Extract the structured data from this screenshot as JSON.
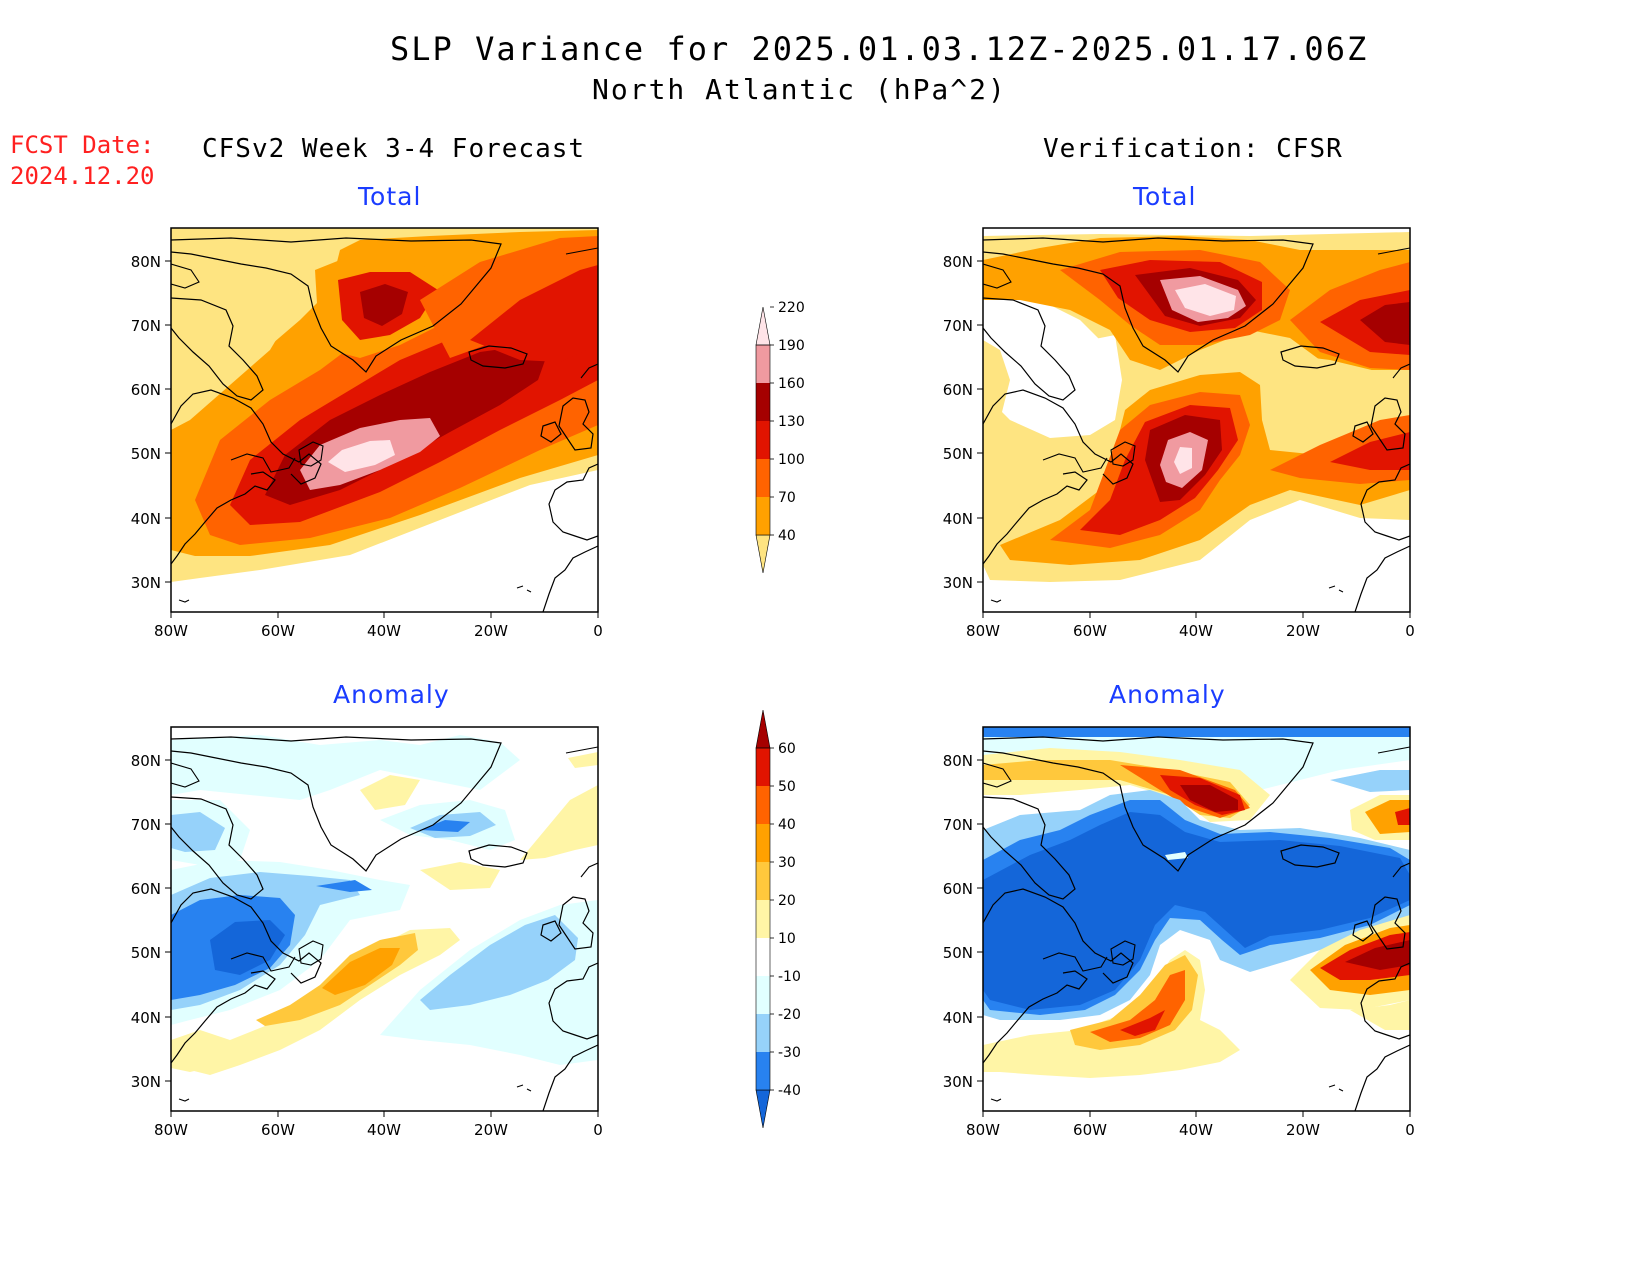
{
  "header": {
    "title": "SLP Variance for 2025.01.03.12Z-2025.01.17.06Z",
    "subtitle": "North Atlantic (hPa^2)"
  },
  "fcst_date": {
    "label": "FCST Date:",
    "value": "2024.12.20"
  },
  "columns": {
    "left": "CFSv2 Week 3-4 Forecast",
    "right": "Verification: CFSR"
  },
  "panels": {
    "total_label": "Total",
    "anomaly_label": "Anomaly"
  },
  "axes": {
    "lat_labels": [
      "80N",
      "70N",
      "60N",
      "50N",
      "40N",
      "30N"
    ],
    "lon_labels": [
      "80W",
      "60W",
      "40W",
      "20W",
      "0"
    ]
  },
  "colorbar_total": {
    "levels": [
      "40",
      "70",
      "100",
      "130",
      "160",
      "190",
      "220"
    ],
    "colors": [
      "#fee481",
      "#ffa100",
      "#ff6300",
      "#e11400",
      "#a50000",
      "#f09aa0",
      "#ffe4e8"
    ]
  },
  "colorbar_anomaly": {
    "levels": [
      "-40",
      "-30",
      "-20",
      "-10",
      "10",
      "20",
      "30",
      "40",
      "50",
      "60"
    ],
    "colors": [
      "#1466d9",
      "#2882f0",
      "#96d2fa",
      "#e1ffff",
      "#ffffff",
      "#fff5a6",
      "#ffc83c",
      "#ffa100",
      "#ff6300",
      "#e11400",
      "#a50000"
    ]
  },
  "map_colors": {
    "land_outline": "#000000",
    "frame": "#000000"
  }
}
